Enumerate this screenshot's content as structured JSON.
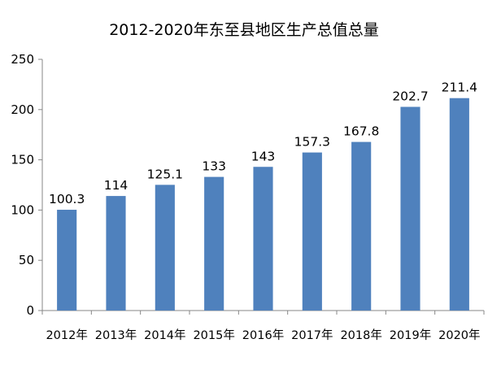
{
  "chart_data": {
    "type": "bar",
    "title": "2012-2020年东至县地区生产总值总量",
    "categories": [
      "2012年",
      "2013年",
      "2014年",
      "2015年",
      "2016年",
      "2017年",
      "2018年",
      "2019年",
      "2020年"
    ],
    "values": [
      100.3,
      114,
      125.1,
      133,
      143,
      157.3,
      167.8,
      202.7,
      211.4
    ],
    "value_labels": [
      "100.3",
      "114",
      "125.1",
      "133",
      "143",
      "157.3",
      "167.8",
      "202.7",
      "211.4"
    ],
    "ylim": [
      0,
      250
    ],
    "yticks": [
      0,
      50,
      100,
      150,
      200,
      250
    ],
    "xlabel": "",
    "ylabel": "",
    "grid": false,
    "legend": "none",
    "bar_color": "#4f81bd",
    "axis_color": "#878787"
  }
}
